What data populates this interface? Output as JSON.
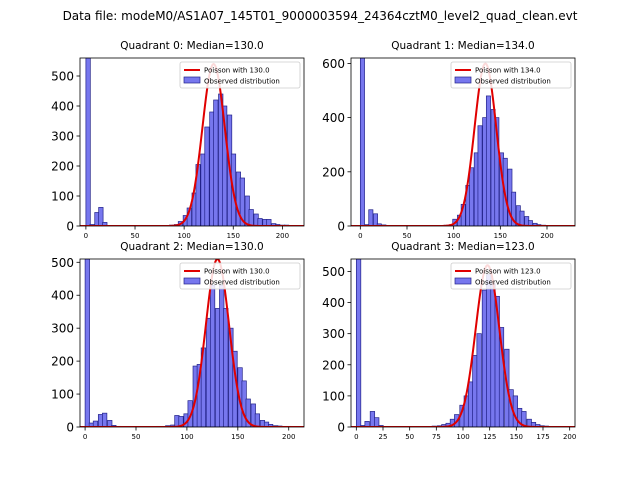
{
  "figure": {
    "suptitle": "Data file: modeM0/AS1A07_145T01_9000003594_24364cztM0_level2_quad_clean.evt"
  },
  "colors": {
    "bar_fill": "#7777ee",
    "bar_edge": "#23238a",
    "poisson_line": "#e00000"
  },
  "chart_data": [
    {
      "type": "bar",
      "title": "Quadrant 0: Median=130.0",
      "legend": {
        "position": "top-right",
        "line_label": "Poisson with 130.0",
        "bar_label": "Observed distribution"
      },
      "xlim": [
        -6,
        222
      ],
      "ylim": [
        0,
        560
      ],
      "xticks": [
        0,
        50,
        100,
        150,
        200
      ],
      "yticks": [
        0,
        100,
        200,
        300,
        400,
        500
      ],
      "bin_width": 4.5,
      "bins": [
        [
          0,
          560
        ],
        [
          4,
          5
        ],
        [
          9,
          45
        ],
        [
          13,
          62
        ],
        [
          17,
          12
        ],
        [
          22,
          2
        ],
        [
          27,
          1
        ],
        [
          31,
          1
        ],
        [
          36,
          1
        ],
        [
          40,
          1
        ],
        [
          45,
          1
        ],
        [
          49,
          1
        ],
        [
          54,
          1
        ],
        [
          58,
          1
        ],
        [
          63,
          1
        ],
        [
          67,
          1
        ],
        [
          72,
          2
        ],
        [
          76,
          1
        ],
        [
          81,
          2
        ],
        [
          85,
          3
        ],
        [
          90,
          5
        ],
        [
          94,
          15
        ],
        [
          99,
          35
        ],
        [
          103,
          60
        ],
        [
          108,
          110
        ],
        [
          112,
          205
        ],
        [
          117,
          240
        ],
        [
          121,
          330
        ],
        [
          126,
          380
        ],
        [
          130,
          420
        ],
        [
          135,
          440
        ],
        [
          139,
          400
        ],
        [
          144,
          370
        ],
        [
          148,
          240
        ],
        [
          153,
          180
        ],
        [
          157,
          160
        ],
        [
          162,
          100
        ],
        [
          166,
          55
        ],
        [
          171,
          40
        ],
        [
          175,
          25
        ],
        [
          180,
          22
        ],
        [
          184,
          22
        ],
        [
          189,
          8
        ],
        [
          193,
          5
        ],
        [
          198,
          3
        ],
        [
          202,
          3
        ],
        [
          207,
          2
        ],
        [
          211,
          2
        ]
      ],
      "poisson": {
        "mean": 130,
        "peak": 540,
        "sigma": 11.4
      }
    },
    {
      "type": "bar",
      "title": "Quadrant 1: Median=134.0",
      "legend": {
        "position": "top-right",
        "line_label": "Poisson with 134.0",
        "bar_label": "Observed distribution"
      },
      "xlim": [
        -10,
        230
      ],
      "ylim": [
        0,
        620
      ],
      "xticks": [
        0,
        50,
        100,
        150,
        200
      ],
      "yticks": [
        0,
        200,
        400,
        600
      ],
      "bin_width": 4.5,
      "bins": [
        [
          0,
          620
        ],
        [
          5,
          5
        ],
        [
          9,
          60
        ],
        [
          14,
          45
        ],
        [
          18,
          8
        ],
        [
          23,
          4
        ],
        [
          27,
          2
        ],
        [
          32,
          1
        ],
        [
          36,
          1
        ],
        [
          41,
          1
        ],
        [
          45,
          1
        ],
        [
          50,
          1
        ],
        [
          54,
          1
        ],
        [
          59,
          1
        ],
        [
          63,
          1
        ],
        [
          68,
          1
        ],
        [
          72,
          1
        ],
        [
          77,
          2
        ],
        [
          81,
          1
        ],
        [
          86,
          2
        ],
        [
          90,
          3
        ],
        [
          95,
          5
        ],
        [
          99,
          25
        ],
        [
          104,
          40
        ],
        [
          108,
          80
        ],
        [
          113,
          150
        ],
        [
          117,
          215
        ],
        [
          122,
          270
        ],
        [
          126,
          370
        ],
        [
          131,
          400
        ],
        [
          135,
          480
        ],
        [
          140,
          430
        ],
        [
          144,
          400
        ],
        [
          149,
          270
        ],
        [
          153,
          250
        ],
        [
          158,
          210
        ],
        [
          162,
          125
        ],
        [
          167,
          75
        ],
        [
          171,
          55
        ],
        [
          176,
          35
        ],
        [
          180,
          20
        ],
        [
          185,
          10
        ],
        [
          189,
          5
        ],
        [
          194,
          3
        ],
        [
          198,
          2
        ],
        [
          203,
          2
        ],
        [
          207,
          1
        ],
        [
          212,
          1
        ]
      ],
      "poisson": {
        "mean": 134,
        "peak": 600,
        "sigma": 11.6
      }
    },
    {
      "type": "bar",
      "title": "Quadrant 2: Median=130.0",
      "legend": {
        "position": "top-right",
        "line_label": "Poisson with 130.0",
        "bar_label": "Observed distribution"
      },
      "xlim": [
        -5,
        215
      ],
      "ylim": [
        0,
        510
      ],
      "xticks": [
        0,
        50,
        100,
        150,
        200
      ],
      "yticks": [
        0,
        100,
        200,
        300,
        400,
        500
      ],
      "bin_width": 4.4,
      "bins": [
        [
          0,
          510
        ],
        [
          4,
          12
        ],
        [
          8,
          18
        ],
        [
          13,
          38
        ],
        [
          17,
          42
        ],
        [
          22,
          20
        ],
        [
          26,
          5
        ],
        [
          31,
          2
        ],
        [
          35,
          1
        ],
        [
          40,
          1
        ],
        [
          44,
          1
        ],
        [
          48,
          1
        ],
        [
          53,
          1
        ],
        [
          57,
          1
        ],
        [
          61,
          1
        ],
        [
          66,
          1
        ],
        [
          70,
          2
        ],
        [
          75,
          2
        ],
        [
          79,
          4
        ],
        [
          84,
          6
        ],
        [
          88,
          35
        ],
        [
          92,
          32
        ],
        [
          97,
          40
        ],
        [
          101,
          80
        ],
        [
          106,
          185
        ],
        [
          110,
          190
        ],
        [
          114,
          240
        ],
        [
          119,
          330
        ],
        [
          123,
          430
        ],
        [
          128,
          360
        ],
        [
          132,
          430
        ],
        [
          136,
          360
        ],
        [
          141,
          300
        ],
        [
          145,
          230
        ],
        [
          150,
          180
        ],
        [
          154,
          140
        ],
        [
          158,
          85
        ],
        [
          163,
          70
        ],
        [
          167,
          40
        ],
        [
          172,
          20
        ],
        [
          176,
          15
        ],
        [
          180,
          8
        ],
        [
          185,
          4
        ],
        [
          189,
          3
        ],
        [
          194,
          2
        ],
        [
          198,
          2
        ]
      ],
      "poisson": {
        "mean": 130,
        "peak": 510,
        "sigma": 11.4
      }
    },
    {
      "type": "bar",
      "title": "Quadrant 3: Median=123.0",
      "legend": {
        "position": "top-right",
        "line_label": "Poisson with 123.0",
        "bar_label": "Observed distribution"
      },
      "xlim": [
        -5,
        205
      ],
      "ylim": [
        0,
        540
      ],
      "xticks": [
        0,
        25,
        50,
        75,
        100,
        125,
        150,
        175,
        200
      ],
      "yticks": [
        0,
        100,
        200,
        300,
        400,
        500
      ],
      "bin_width": 4.2,
      "bins": [
        [
          0,
          540
        ],
        [
          4,
          5
        ],
        [
          8,
          18
        ],
        [
          13,
          50
        ],
        [
          17,
          30
        ],
        [
          21,
          5
        ],
        [
          25,
          2
        ],
        [
          29,
          1
        ],
        [
          34,
          1
        ],
        [
          38,
          1
        ],
        [
          42,
          1
        ],
        [
          46,
          1
        ],
        [
          50,
          1
        ],
        [
          55,
          1
        ],
        [
          59,
          1
        ],
        [
          63,
          1
        ],
        [
          67,
          2
        ],
        [
          71,
          3
        ],
        [
          76,
          4
        ],
        [
          80,
          8
        ],
        [
          84,
          12
        ],
        [
          88,
          25
        ],
        [
          92,
          40
        ],
        [
          97,
          70
        ],
        [
          101,
          100
        ],
        [
          105,
          145
        ],
        [
          109,
          230
        ],
        [
          113,
          300
        ],
        [
          118,
          440
        ],
        [
          122,
          490
        ],
        [
          126,
          460
        ],
        [
          130,
          420
        ],
        [
          134,
          320
        ],
        [
          139,
          250
        ],
        [
          143,
          120
        ],
        [
          147,
          100
        ],
        [
          151,
          60
        ],
        [
          155,
          50
        ],
        [
          160,
          25
        ],
        [
          164,
          15
        ],
        [
          168,
          8
        ],
        [
          172,
          4
        ],
        [
          176,
          3
        ],
        [
          181,
          2
        ],
        [
          185,
          1
        ]
      ],
      "poisson": {
        "mean": 123,
        "peak": 520,
        "sigma": 11.1
      }
    }
  ]
}
